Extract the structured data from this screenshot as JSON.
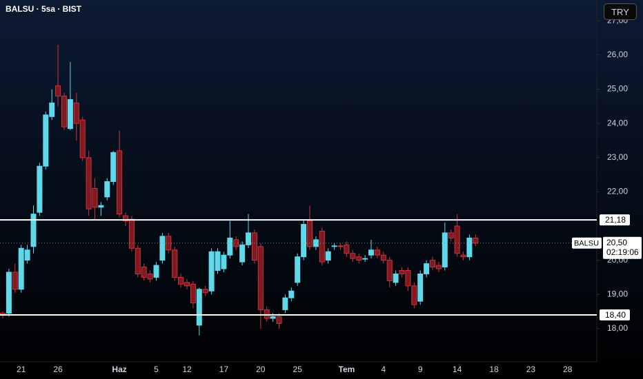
{
  "chart_data": {
    "type": "candlestick",
    "title": "BALSU · 5sa · BIST",
    "currency": "TRY",
    "categories": [
      null,
      null,
      null,
      "21",
      null,
      null,
      null,
      null,
      null,
      "26",
      null,
      null,
      null,
      null,
      null,
      null,
      null,
      null,
      null,
      "Haz",
      null,
      null,
      null,
      null,
      null,
      "5",
      null,
      null,
      null,
      null,
      "12",
      null,
      null,
      null,
      null,
      null,
      "17",
      null,
      null,
      null,
      null,
      null,
      "20",
      null,
      null,
      null,
      null,
      null,
      "25",
      null,
      null,
      null,
      null,
      null,
      null,
      null,
      "Tem",
      null,
      null,
      null,
      null,
      null,
      "4",
      null,
      null,
      null,
      null,
      null,
      "9",
      null,
      null,
      null,
      null,
      null,
      "14",
      null,
      null,
      null,
      null,
      null,
      "18",
      null,
      null,
      null,
      null,
      null,
      "23",
      null,
      null,
      null,
      null,
      null,
      "28",
      null
    ],
    "open": [
      18.45,
      18.45,
      19.65,
      19.15,
      20.0,
      20.4,
      21.4,
      22.75,
      24.2,
      25.1,
      24.8,
      23.85,
      24.6,
      24.1,
      23.0,
      22.1,
      21.55,
      21.85,
      22.3,
      23.2,
      21.3,
      21.2,
      20.35,
      19.8,
      19.6,
      19.5,
      20.0,
      20.7,
      20.3,
      19.5,
      19.35,
      19.3,
      18.1,
      19.15,
      19.1,
      19.7,
      19.75,
      20.15,
      20.6,
      19.95,
      20.45,
      20.8,
      20.4,
      18.55,
      18.3,
      18.35,
      18.55,
      18.9,
      19.35,
      20.1,
      21.15,
      20.4,
      20.85,
      20.0,
      20.4,
      20.42,
      20.45,
      20.2,
      20.1,
      20.05,
      20.15,
      20.3,
      20.15,
      20.0,
      19.35,
      19.7,
      19.7,
      19.25,
      18.8,
      19.6,
      20.0,
      19.85,
      19.8,
      20.8,
      21.0,
      20.15,
      20.1,
      20.65,
      null,
      null,
      null,
      null,
      null,
      null,
      null,
      null,
      null,
      null,
      null,
      null,
      null,
      null,
      null,
      null
    ],
    "high": [
      18.5,
      19.75,
      19.9,
      20.45,
      20.45,
      21.6,
      22.85,
      24.35,
      25.0,
      26.3,
      24.9,
      25.8,
      24.9,
      24.2,
      23.2,
      22.4,
      21.7,
      22.4,
      23.2,
      23.8,
      21.4,
      21.3,
      20.45,
      19.9,
      19.7,
      19.95,
      20.8,
      20.8,
      20.4,
      19.6,
      19.45,
      19.4,
      19.2,
      19.25,
      20.35,
      20.35,
      20.25,
      21.15,
      20.7,
      20.55,
      21.35,
      20.9,
      20.5,
      18.65,
      18.45,
      18.45,
      19.0,
      19.2,
      20.2,
      21.2,
      21.6,
      20.7,
      20.95,
      20.35,
      20.5,
      20.5,
      20.55,
      20.3,
      20.2,
      20.15,
      20.6,
      20.4,
      20.25,
      20.1,
      19.7,
      19.8,
      19.8,
      19.35,
      19.7,
      20.0,
      20.1,
      19.95,
      21.1,
      20.9,
      21.35,
      20.25,
      20.75,
      20.75,
      null,
      null,
      null,
      null,
      null,
      null,
      null,
      null,
      null,
      null,
      null,
      null,
      null,
      null,
      null,
      null
    ],
    "low": [
      18.3,
      18.35,
      19.05,
      19.05,
      19.9,
      20.2,
      21.3,
      22.65,
      24.1,
      24.5,
      23.8,
      23.8,
      23.5,
      22.9,
      21.3,
      21.2,
      21.3,
      21.75,
      22.2,
      21.25,
      21.0,
      20.25,
      19.5,
      19.4,
      19.35,
      19.4,
      19.9,
      20.2,
      19.4,
      19.2,
      19.15,
      18.6,
      17.8,
      18.95,
      19.0,
      19.6,
      19.65,
      20.05,
      20.3,
      19.85,
      20.35,
      19.9,
      18.0,
      18.2,
      18.2,
      18.0,
      18.45,
      18.8,
      19.25,
      20.0,
      20.3,
      20.3,
      19.85,
      19.9,
      20.3,
      20.3,
      20.1,
      19.95,
      19.9,
      19.95,
      20.05,
      20.05,
      19.9,
      19.2,
      19.25,
      19.5,
      19.1,
      18.6,
      18.7,
      19.5,
      19.7,
      19.65,
      19.7,
      20.55,
      20.1,
      20.0,
      20.0,
      20.4,
      null,
      null,
      null,
      null,
      null,
      null,
      null,
      null,
      null,
      null,
      null,
      null,
      null,
      null,
      null,
      null
    ],
    "close": [
      18.4,
      19.65,
      19.15,
      20.35,
      20.3,
      21.35,
      22.75,
      24.25,
      24.6,
      24.8,
      23.9,
      24.7,
      24.0,
      23.0,
      21.5,
      21.55,
      21.6,
      22.3,
      23.15,
      21.35,
      21.15,
      20.35,
      19.6,
      19.5,
      19.45,
      19.85,
      20.7,
      20.3,
      19.5,
      19.3,
      19.25,
      18.75,
      19.15,
      19.05,
      20.25,
      20.25,
      20.15,
      20.65,
      20.4,
      20.45,
      20.8,
      20.0,
      18.55,
      18.3,
      18.35,
      18.15,
      18.9,
      19.1,
      20.1,
      21.05,
      20.4,
      20.6,
      19.95,
      20.25,
      20.42,
      20.4,
      20.2,
      20.05,
      20.0,
      20.05,
      20.3,
      20.15,
      20.0,
      19.4,
      19.6,
      19.6,
      19.25,
      18.7,
      19.6,
      19.9,
      19.8,
      19.75,
      20.8,
      20.65,
      20.2,
      20.1,
      20.65,
      20.5,
      null,
      null,
      null,
      null,
      null,
      null,
      null,
      null,
      null,
      null,
      null,
      null,
      null,
      null,
      null,
      null
    ],
    "up_color": "#5fd8ea",
    "down_color": "#7e1a20",
    "down_border": "#d0323a",
    "ylim": [
      17.03,
      27.61
    ],
    "yticks": [
      {
        "value": 18,
        "label": "18,00"
      },
      {
        "value": 19,
        "label": "19,00"
      },
      {
        "value": 20,
        "label": "20,00"
      },
      {
        "value": 22,
        "label": "22,00"
      },
      {
        "value": 23,
        "label": "23,00"
      },
      {
        "value": 24,
        "label": "24,00"
      },
      {
        "value": 25,
        "label": "25,00"
      },
      {
        "value": 26,
        "label": "26,00"
      },
      {
        "value": 27,
        "label": "27,00"
      }
    ],
    "hlines": [
      {
        "value": 21.18,
        "label": "21,18"
      },
      {
        "value": 18.4,
        "label": "18,40"
      }
    ],
    "last_price": {
      "value": 20.5,
      "label": "20,50",
      "symbol": "BALSU",
      "countdown": "02:19:06"
    }
  }
}
